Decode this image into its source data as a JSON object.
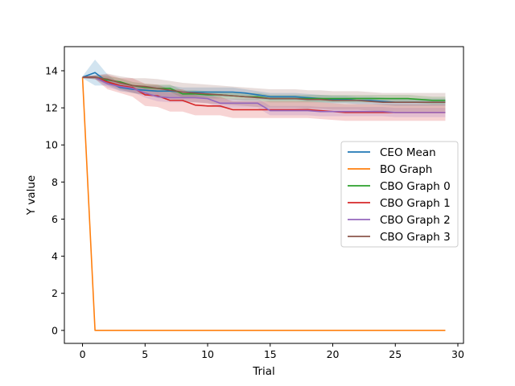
{
  "chart_data": {
    "type": "line",
    "xlabel": "Trial",
    "ylabel": "Y value",
    "xlim": [
      -1.45,
      30.45
    ],
    "ylim": [
      -0.7,
      15.3
    ],
    "xticks": [
      0,
      5,
      10,
      15,
      20,
      25,
      30
    ],
    "yticks": [
      0,
      2,
      4,
      6,
      8,
      10,
      12,
      14
    ],
    "grid": false,
    "legend_position": "center-right",
    "series": [
      {
        "name": "CEO Mean",
        "color": "#1f77b4",
        "x": [
          0,
          1,
          2,
          3,
          4,
          5,
          6,
          7,
          8,
          9,
          10,
          11,
          12,
          13,
          14,
          15,
          16,
          17,
          18,
          19,
          20,
          21,
          22,
          23,
          24,
          25,
          26,
          27,
          28,
          29
        ],
        "values": [
          13.65,
          13.9,
          13.4,
          13.1,
          13.0,
          12.95,
          12.9,
          12.9,
          12.85,
          12.85,
          12.85,
          12.85,
          12.85,
          12.8,
          12.7,
          12.6,
          12.6,
          12.6,
          12.55,
          12.5,
          12.45,
          12.45,
          12.4,
          12.4,
          12.35,
          12.3,
          12.3,
          12.3,
          12.3,
          12.3
        ],
        "band_lower": [
          13.6,
          13.2,
          13.2,
          12.9,
          12.8,
          12.7,
          12.6,
          12.6,
          12.6,
          12.6,
          12.6,
          12.6,
          12.6,
          12.6,
          12.5,
          12.4,
          12.4,
          12.4,
          12.35,
          12.3,
          12.25,
          12.25,
          12.2,
          12.2,
          12.15,
          12.1,
          12.1,
          12.1,
          12.1,
          12.1
        ],
        "band_upper": [
          13.7,
          14.6,
          13.8,
          13.3,
          13.2,
          13.2,
          13.2,
          13.2,
          13.1,
          13.1,
          13.1,
          13.1,
          13.1,
          13.0,
          12.9,
          12.8,
          12.8,
          12.8,
          12.75,
          12.7,
          12.65,
          12.65,
          12.6,
          12.6,
          12.55,
          12.5,
          12.5,
          12.5,
          12.5,
          12.5
        ]
      },
      {
        "name": "BO Graph",
        "color": "#ff7f0e",
        "x": [
          0,
          1,
          2,
          3,
          4,
          5,
          6,
          7,
          8,
          9,
          10,
          11,
          12,
          13,
          14,
          15,
          16,
          17,
          18,
          19,
          20,
          21,
          22,
          23,
          24,
          25,
          26,
          27,
          28,
          29
        ],
        "values": [
          13.65,
          0.0,
          0.0,
          0.0,
          0.0,
          0.0,
          0.0,
          0.0,
          0.0,
          0.0,
          0.0,
          0.0,
          0.0,
          0.0,
          0.0,
          0.0,
          0.0,
          0.0,
          0.0,
          0.0,
          0.0,
          0.0,
          0.0,
          0.0,
          0.0,
          0.0,
          0.0,
          0.0,
          0.0,
          0.0
        ]
      },
      {
        "name": "CBO Graph 0",
        "color": "#2ca02c",
        "x": [
          0,
          1,
          2,
          3,
          4,
          5,
          6,
          7,
          8,
          9,
          10,
          11,
          12,
          13,
          14,
          15,
          16,
          17,
          18,
          19,
          20,
          21,
          22,
          23,
          24,
          25,
          26,
          27,
          28,
          29
        ],
        "values": [
          13.65,
          13.65,
          13.5,
          13.4,
          13.2,
          13.1,
          13.05,
          13.05,
          12.75,
          12.75,
          12.7,
          12.7,
          12.65,
          12.6,
          12.6,
          12.5,
          12.5,
          12.5,
          12.5,
          12.5,
          12.5,
          12.5,
          12.5,
          12.5,
          12.5,
          12.5,
          12.5,
          12.45,
          12.4,
          12.4
        ],
        "band_lower": [
          13.6,
          13.55,
          13.3,
          13.2,
          13.0,
          12.9,
          12.85,
          12.85,
          12.55,
          12.55,
          12.5,
          12.5,
          12.45,
          12.4,
          12.4,
          12.3,
          12.3,
          12.3,
          12.3,
          12.3,
          12.3,
          12.3,
          12.3,
          12.3,
          12.3,
          12.3,
          12.3,
          12.25,
          12.2,
          12.2
        ],
        "band_upper": [
          13.7,
          13.75,
          13.7,
          13.6,
          13.4,
          13.3,
          13.25,
          13.25,
          12.95,
          12.95,
          12.9,
          12.9,
          12.85,
          12.8,
          12.8,
          12.7,
          12.7,
          12.7,
          12.7,
          12.7,
          12.7,
          12.7,
          12.7,
          12.7,
          12.7,
          12.7,
          12.7,
          12.65,
          12.6,
          12.6
        ]
      },
      {
        "name": "CBO Graph 1",
        "color": "#d62728",
        "x": [
          0,
          1,
          2,
          3,
          4,
          5,
          6,
          7,
          8,
          9,
          10,
          11,
          12,
          13,
          14,
          15,
          16,
          17,
          18,
          19,
          20,
          21,
          22,
          23,
          24,
          25,
          26,
          27,
          28,
          29
        ],
        "values": [
          13.65,
          13.65,
          13.4,
          13.2,
          13.1,
          12.7,
          12.65,
          12.4,
          12.4,
          12.15,
          12.1,
          12.1,
          11.9,
          11.9,
          11.9,
          11.9,
          11.9,
          11.9,
          11.9,
          11.85,
          11.8,
          11.75,
          11.75,
          11.75,
          11.75,
          11.75,
          11.75,
          11.75,
          11.75,
          11.75
        ],
        "band_lower": [
          13.6,
          13.55,
          13.0,
          12.8,
          12.6,
          12.1,
          12.05,
          11.8,
          11.8,
          11.6,
          11.6,
          11.6,
          11.45,
          11.45,
          11.45,
          11.45,
          11.45,
          11.45,
          11.45,
          11.4,
          11.35,
          11.3,
          11.3,
          11.3,
          11.3,
          11.3,
          11.3,
          11.3,
          11.3,
          11.3
        ],
        "band_upper": [
          13.7,
          13.75,
          13.8,
          13.6,
          13.6,
          13.3,
          13.25,
          13.0,
          13.0,
          12.7,
          12.6,
          12.6,
          12.35,
          12.35,
          12.35,
          12.35,
          12.35,
          12.35,
          12.35,
          12.3,
          12.25,
          12.2,
          12.2,
          12.2,
          12.2,
          12.2,
          12.2,
          12.2,
          12.2,
          12.2
        ]
      },
      {
        "name": "CBO Graph 2",
        "color": "#9467bd",
        "x": [
          0,
          1,
          2,
          3,
          4,
          5,
          6,
          7,
          8,
          9,
          10,
          11,
          12,
          13,
          14,
          15,
          16,
          17,
          18,
          19,
          20,
          21,
          22,
          23,
          24,
          25,
          26,
          27,
          28,
          29
        ],
        "values": [
          13.65,
          13.65,
          13.3,
          13.15,
          13.05,
          12.8,
          12.6,
          12.55,
          12.55,
          12.55,
          12.5,
          12.25,
          12.25,
          12.25,
          12.25,
          11.85,
          11.85,
          11.85,
          11.85,
          11.8,
          11.8,
          11.8,
          11.8,
          11.8,
          11.8,
          11.75,
          11.75,
          11.75,
          11.75,
          11.75
        ],
        "band_lower": [
          13.6,
          13.55,
          13.1,
          12.95,
          12.85,
          12.55,
          12.35,
          12.3,
          12.3,
          12.3,
          12.25,
          12.0,
          12.0,
          12.0,
          12.0,
          11.6,
          11.6,
          11.6,
          11.6,
          11.55,
          11.55,
          11.55,
          11.55,
          11.55,
          11.55,
          11.5,
          11.5,
          11.5,
          11.5,
          11.5
        ],
        "band_upper": [
          13.7,
          13.75,
          13.5,
          13.35,
          13.25,
          13.05,
          12.85,
          12.8,
          12.8,
          12.8,
          12.75,
          12.5,
          12.5,
          12.5,
          12.5,
          12.1,
          12.1,
          12.1,
          12.1,
          12.05,
          12.05,
          12.05,
          12.05,
          12.05,
          12.05,
          12.0,
          12.0,
          12.0,
          12.0,
          12.0
        ]
      },
      {
        "name": "CBO Graph 3",
        "color": "#8c564b",
        "x": [
          0,
          1,
          2,
          3,
          4,
          5,
          6,
          7,
          8,
          9,
          10,
          11,
          12,
          13,
          14,
          15,
          16,
          17,
          18,
          19,
          20,
          21,
          22,
          23,
          24,
          25,
          26,
          27,
          28,
          29
        ],
        "values": [
          13.65,
          13.65,
          13.55,
          13.35,
          13.2,
          13.15,
          13.05,
          12.95,
          12.85,
          12.8,
          12.75,
          12.7,
          12.65,
          12.6,
          12.55,
          12.5,
          12.5,
          12.5,
          12.45,
          12.45,
          12.4,
          12.4,
          12.4,
          12.35,
          12.3,
          12.3,
          12.3,
          12.3,
          12.3,
          12.3
        ],
        "band_lower": [
          13.6,
          13.55,
          13.25,
          13.0,
          12.8,
          12.7,
          12.55,
          12.45,
          12.35,
          12.3,
          12.25,
          12.2,
          12.15,
          12.1,
          12.05,
          12.0,
          12.0,
          12.0,
          11.95,
          11.95,
          11.9,
          11.9,
          11.9,
          11.85,
          11.8,
          11.8,
          11.8,
          11.8,
          11.8,
          11.8
        ],
        "band_upper": [
          13.7,
          13.75,
          13.85,
          13.7,
          13.6,
          13.6,
          13.55,
          13.45,
          13.35,
          13.3,
          13.25,
          13.2,
          13.15,
          13.1,
          13.05,
          13.0,
          13.0,
          13.0,
          12.95,
          12.95,
          12.9,
          12.9,
          12.9,
          12.85,
          12.8,
          12.8,
          12.8,
          12.8,
          12.8,
          12.8
        ]
      }
    ]
  }
}
